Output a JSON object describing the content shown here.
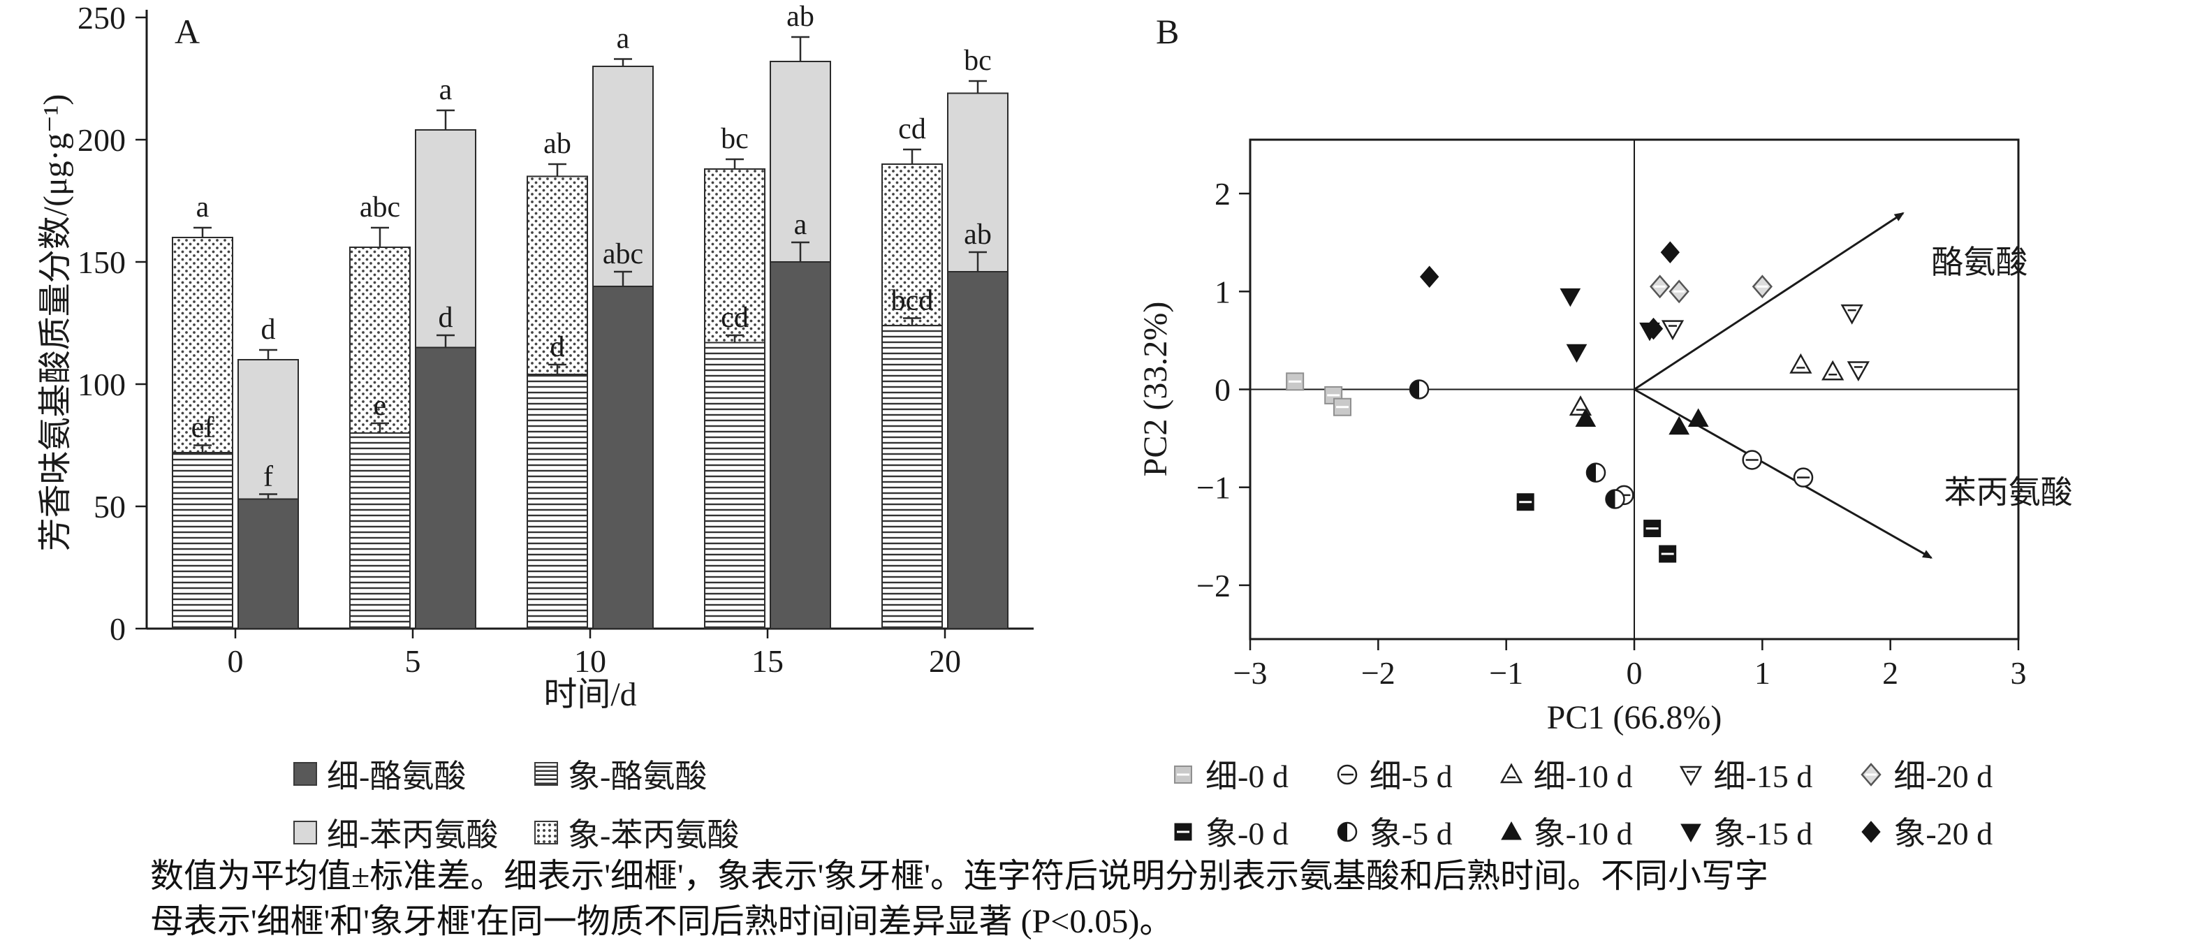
{
  "figure": {
    "background": "#ffffff",
    "ink": "#1a1a1a"
  },
  "panelA": {
    "label": "A",
    "ylabel": "芳香味氨基酸质量分数/(μg·g⁻¹)",
    "xlabel": "时间/d",
    "colors": {
      "xi_tyrosine": "#595959",
      "xi_phenylalanine": "#d9d9d9"
    },
    "legend": {
      "items": [
        {
          "label": "细-酪氨酸",
          "swatch": "dark"
        },
        {
          "label": "象-酪氨酸",
          "swatch": "stripes"
        },
        {
          "label": "细-苯丙氨酸",
          "swatch": "light"
        },
        {
          "label": "象-苯丙氨酸",
          "swatch": "dots"
        }
      ]
    }
  },
  "panelB": {
    "label": "B",
    "xlabel": "PC1 (66.8%)",
    "ylabel": "PC2 (33.2%)",
    "legend": {
      "items": [
        {
          "label": "细-0 d",
          "marker": "square-light"
        },
        {
          "label": "细-5 d",
          "marker": "circle-open"
        },
        {
          "label": "细-10 d",
          "marker": "tri-up-open"
        },
        {
          "label": "细-15 d",
          "marker": "tri-down-open"
        },
        {
          "label": "细-20 d",
          "marker": "diamond-open"
        },
        {
          "label": "象-0 d",
          "marker": "square-filled"
        },
        {
          "label": "象-5 d",
          "marker": "circle-half"
        },
        {
          "label": "象-10 d",
          "marker": "tri-up-filled"
        },
        {
          "label": "象-15 d",
          "marker": "tri-down-filled"
        },
        {
          "label": "象-20 d",
          "marker": "diamond-filled"
        }
      ]
    }
  },
  "caption": {
    "line1": "数值为平均值±标准差。细表示'细榧'，象表示'象牙榧'。连字符后说明分别表示氨基酸和后熟时间。不同小写字",
    "line2": "母表示'细榧'和'象牙榧'在同一物质不同后熟时间间差异显著 (P<0.05)。"
  },
  "chart_data": [
    {
      "type": "bar",
      "stacked": true,
      "panel": "A",
      "title": "",
      "xlabel": "时间/d",
      "ylabel": "芳香味氨基酸质量分数/(μg·g⁻¹)",
      "categories": [
        0,
        5,
        10,
        15,
        20
      ],
      "ylim": [
        0,
        250
      ],
      "yticks": [
        0,
        50,
        100,
        150,
        200,
        250
      ],
      "bar_groups": [
        {
          "name": "象牙榧",
          "segments": [
            {
              "series": "象-酪氨酸",
              "fill": "stripes",
              "values": [
                72,
                80,
                104,
                117,
                124
              ],
              "errors": [
                3,
                4,
                4,
                3,
                3
              ],
              "letters": [
                "ef",
                "e",
                "d",
                "cd",
                "bcd"
              ]
            },
            {
              "series": "象-苯丙氨酸",
              "fill": "dots",
              "values": [
                88,
                76,
                81,
                71,
                66
              ],
              "total_errors": [
                4,
                8,
                5,
                4,
                6
              ],
              "letters": [
                "a",
                "abc",
                "ab",
                "bc",
                "cd"
              ]
            }
          ]
        },
        {
          "name": "细榧",
          "segments": [
            {
              "series": "细-酪氨酸",
              "fill": "#595959",
              "values": [
                53,
                115,
                140,
                150,
                146
              ],
              "errors": [
                2,
                5,
                6,
                8,
                8
              ],
              "letters": [
                "f",
                "d",
                "abc",
                "a",
                "ab"
              ]
            },
            {
              "series": "细-苯丙氨酸",
              "fill": "#d9d9d9",
              "values": [
                57,
                89,
                90,
                82,
                73
              ],
              "total_errors": [
                4,
                8,
                3,
                10,
                5
              ],
              "letters": [
                "d",
                "a",
                "a",
                "ab",
                "bc"
              ]
            }
          ]
        }
      ]
    },
    {
      "type": "scatter",
      "panel": "B",
      "title": "",
      "xlabel": "PC1 (66.8%)",
      "ylabel": "PC2 (33.2%)",
      "xlim": [
        -3,
        3
      ],
      "ylim": [
        -2.55,
        2.55
      ],
      "xticks": [
        -3,
        -2,
        -1,
        0,
        1,
        2,
        3
      ],
      "yticks": [
        -2,
        -1,
        0,
        1,
        2
      ],
      "series": [
        {
          "name": "细-0 d",
          "marker": "square-light",
          "points": [
            [
              -2.65,
              0.08
            ],
            [
              -2.35,
              -0.06
            ],
            [
              -2.28,
              -0.18
            ]
          ]
        },
        {
          "name": "细-5 d",
          "marker": "circle-open",
          "points": [
            [
              0.92,
              -0.72
            ],
            [
              1.32,
              -0.9
            ],
            [
              -0.08,
              -1.08
            ]
          ]
        },
        {
          "name": "细-10 d",
          "marker": "tri-up-open",
          "points": [
            [
              1.3,
              0.25
            ],
            [
              1.55,
              0.18
            ],
            [
              -0.42,
              -0.18
            ]
          ]
        },
        {
          "name": "细-15 d",
          "marker": "tri-down-open",
          "points": [
            [
              1.7,
              0.78
            ],
            [
              1.75,
              0.2
            ],
            [
              0.3,
              0.62
            ]
          ]
        },
        {
          "name": "细-20 d",
          "marker": "diamond-open",
          "points": [
            [
              0.2,
              1.05
            ],
            [
              0.35,
              1.0
            ],
            [
              1.0,
              1.05
            ]
          ]
        },
        {
          "name": "象-0 d",
          "marker": "square-filled",
          "points": [
            [
              -0.85,
              -1.15
            ],
            [
              0.14,
              -1.42
            ],
            [
              0.26,
              -1.68
            ]
          ]
        },
        {
          "name": "象-5 d",
          "marker": "circle-half",
          "points": [
            [
              -1.68,
              0.0
            ],
            [
              -0.3,
              -0.85
            ],
            [
              -0.15,
              -1.12
            ]
          ]
        },
        {
          "name": "象-10 d",
          "marker": "tri-up-filled",
          "points": [
            [
              -0.38,
              -0.3
            ],
            [
              0.35,
              -0.38
            ],
            [
              0.5,
              -0.3
            ]
          ]
        },
        {
          "name": "象-15 d",
          "marker": "tri-down-filled",
          "points": [
            [
              -0.5,
              0.95
            ],
            [
              -0.45,
              0.38
            ],
            [
              0.12,
              0.6
            ]
          ]
        },
        {
          "name": "象-20 d",
          "marker": "diamond-filled",
          "points": [
            [
              -1.6,
              1.15
            ],
            [
              0.28,
              1.4
            ],
            [
              0.15,
              0.62
            ]
          ]
        }
      ],
      "arrows": [
        {
          "label": "酪氨酸",
          "from": [
            0,
            0
          ],
          "to": [
            2.1,
            1.8
          ],
          "label_at": [
            2.32,
            1.3
          ]
        },
        {
          "label": "苯丙氨酸",
          "from": [
            0,
            0
          ],
          "to": [
            2.32,
            -1.72
          ],
          "label_at": [
            2.42,
            -1.05
          ]
        }
      ]
    }
  ]
}
